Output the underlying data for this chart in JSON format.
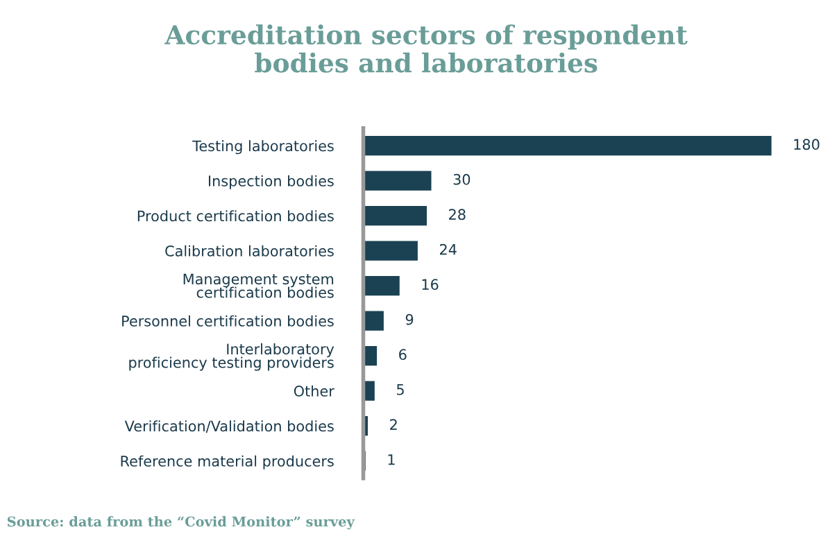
{
  "chart_data": {
    "type": "bar",
    "orientation": "horizontal",
    "title": "Accreditation sectors of respondent\nbodies and laboratories",
    "categories": [
      "Testing laboratories",
      "Inspection bodies",
      "Product certification bodies",
      "Calibration laboratories",
      "Management system\ncertification bodies",
      "Personnel certification bodies",
      "Interlaboratory\nproficiency testing providers",
      "Other",
      "Verification/Validation bodies",
      "Reference material producers"
    ],
    "values": [
      180,
      30,
      28,
      24,
      16,
      9,
      6,
      5,
      2,
      1
    ],
    "color": "#1b4252",
    "data_labels": true,
    "grid": false,
    "legend": false,
    "tick_labels": "y",
    "annotations": [
      "Source: data from the “Covid Monitor” survey"
    ]
  }
}
